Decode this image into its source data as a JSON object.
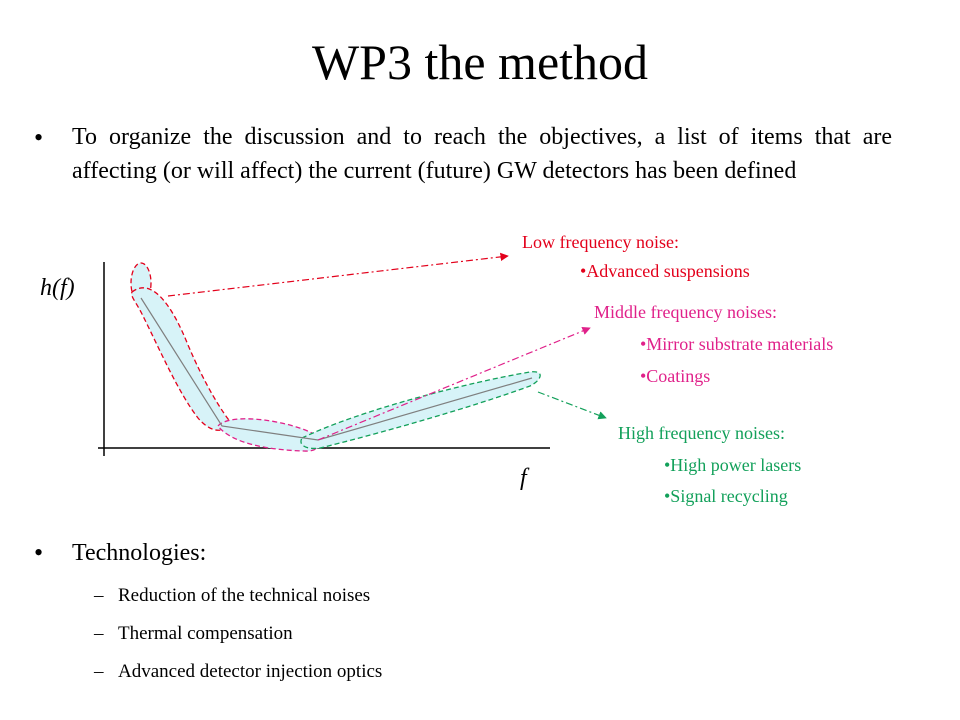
{
  "title": "WP3 the method",
  "bullet_symbol": "•",
  "intro_text": "To organize the discussion and to reach the objectives, a list of items that are affecting (or will affect) the current (future) GW detectors has been defined",
  "diagram": {
    "y_axis_label": "h(f)",
    "x_axis_label": "f",
    "annotations": {
      "low": {
        "heading": "Low frequency noise:",
        "items": [
          "•Advanced suspensions"
        ],
        "color": "#e3001b"
      },
      "middle": {
        "heading": "Middle frequency noises:",
        "items": [
          "•Mirror substrate materials",
          "•Coatings"
        ],
        "color": "#e0218a"
      },
      "high": {
        "heading": "High frequency noises:",
        "items": [
          "•High power lasers",
          "•Signal recycling"
        ],
        "color": "#12a05a"
      }
    },
    "fill_color": "#d7f3f8"
  },
  "technologies": {
    "heading": "Technologies:",
    "dash": "–",
    "items": [
      "Reduction of the technical noises",
      "Thermal compensation",
      "Advanced detector injection optics"
    ]
  }
}
